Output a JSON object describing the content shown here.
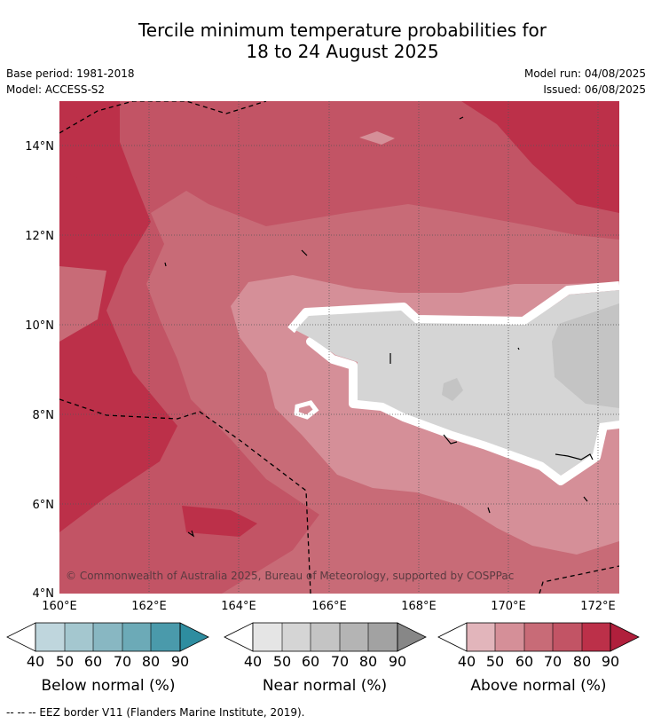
{
  "title_line1": "Tercile minimum temperature probabilities for",
  "title_line2": "18 to 24 August 2025",
  "base_period": "Base period: 1981-2018",
  "model": "Model: ACCESS-S2",
  "model_run": "Model run: 04/08/2025",
  "issued": "Issued: 06/08/2025",
  "copyright": "© Commonwealth of Australia 2025, Bureau of Meteorology, supported by COSPPac",
  "lat_labels": [
    "14°N",
    "12°N",
    "10°N",
    "8°N",
    "6°N",
    "4°N"
  ],
  "lon_labels": [
    "160°E",
    "162°E",
    "164°E",
    "166°E",
    "168°E",
    "170°E",
    "172°E"
  ],
  "colorbars": [
    {
      "label": "Below normal (%)",
      "ticks": [
        "40",
        "50",
        "60",
        "70",
        "80",
        "90"
      ],
      "colors": [
        "#bfd6dd",
        "#a4c7cf",
        "#88b7c2",
        "#6caab7",
        "#4a9aab",
        "#2e8da0"
      ]
    },
    {
      "label": "Near normal (%)",
      "ticks": [
        "40",
        "50",
        "60",
        "70",
        "80",
        "90"
      ],
      "colors": [
        "#e5e5e5",
        "#d5d5d5",
        "#c4c4c4",
        "#b4b4b4",
        "#a2a2a2",
        "#878787"
      ]
    },
    {
      "label": "Above normal (%)",
      "ticks": [
        "40",
        "50",
        "60",
        "70",
        "80",
        "90"
      ],
      "colors": [
        "#e2b5bb",
        "#d58f98",
        "#c86b77",
        "#c25465",
        "#bc3049",
        "#b01f3c"
      ]
    }
  ],
  "footnote": "--  --  -- EEZ border V11 (Flanders Marine Institute, 2019)."
}
